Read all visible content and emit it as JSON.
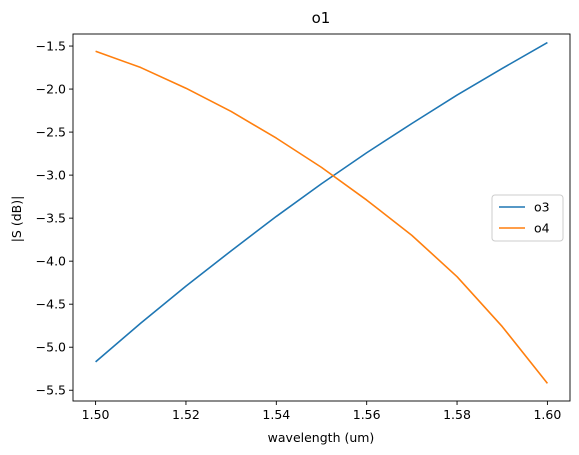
{
  "chart_data": {
    "type": "line",
    "title": "o1",
    "xlabel": "wavelength (um)",
    "ylabel": "|S (dB)|",
    "xlim": [
      1.495,
      1.605
    ],
    "ylim": [
      -5.625,
      -1.36
    ],
    "x_ticks": [
      1.5,
      1.52,
      1.54,
      1.56,
      1.58,
      1.6
    ],
    "x_tick_labels": [
      "1.50",
      "1.52",
      "1.54",
      "1.56",
      "1.58",
      "1.60"
    ],
    "y_ticks": [
      -1.5,
      -2.0,
      -2.5,
      -3.0,
      -3.5,
      -4.0,
      -4.5,
      -5.0,
      -5.5
    ],
    "y_tick_labels": [
      "−1.5",
      "−2.0",
      "−2.5",
      "−3.0",
      "−3.5",
      "−4.0",
      "−4.5",
      "−5.0",
      "−5.5"
    ],
    "grid": false,
    "legend_position": "center-right",
    "x": [
      1.5,
      1.51,
      1.52,
      1.53,
      1.54,
      1.55,
      1.56,
      1.57,
      1.58,
      1.59,
      1.6
    ],
    "series": [
      {
        "name": "o3",
        "color": "#1f77b4",
        "values": [
          -5.17,
          -4.72,
          -4.29,
          -3.88,
          -3.48,
          -3.1,
          -2.74,
          -2.4,
          -2.07,
          -1.76,
          -1.46
        ]
      },
      {
        "name": "o4",
        "color": "#ff7f0e",
        "values": [
          -1.56,
          -1.75,
          -1.99,
          -2.26,
          -2.57,
          -2.91,
          -3.29,
          -3.7,
          -4.18,
          -4.76,
          -5.42
        ]
      }
    ]
  }
}
